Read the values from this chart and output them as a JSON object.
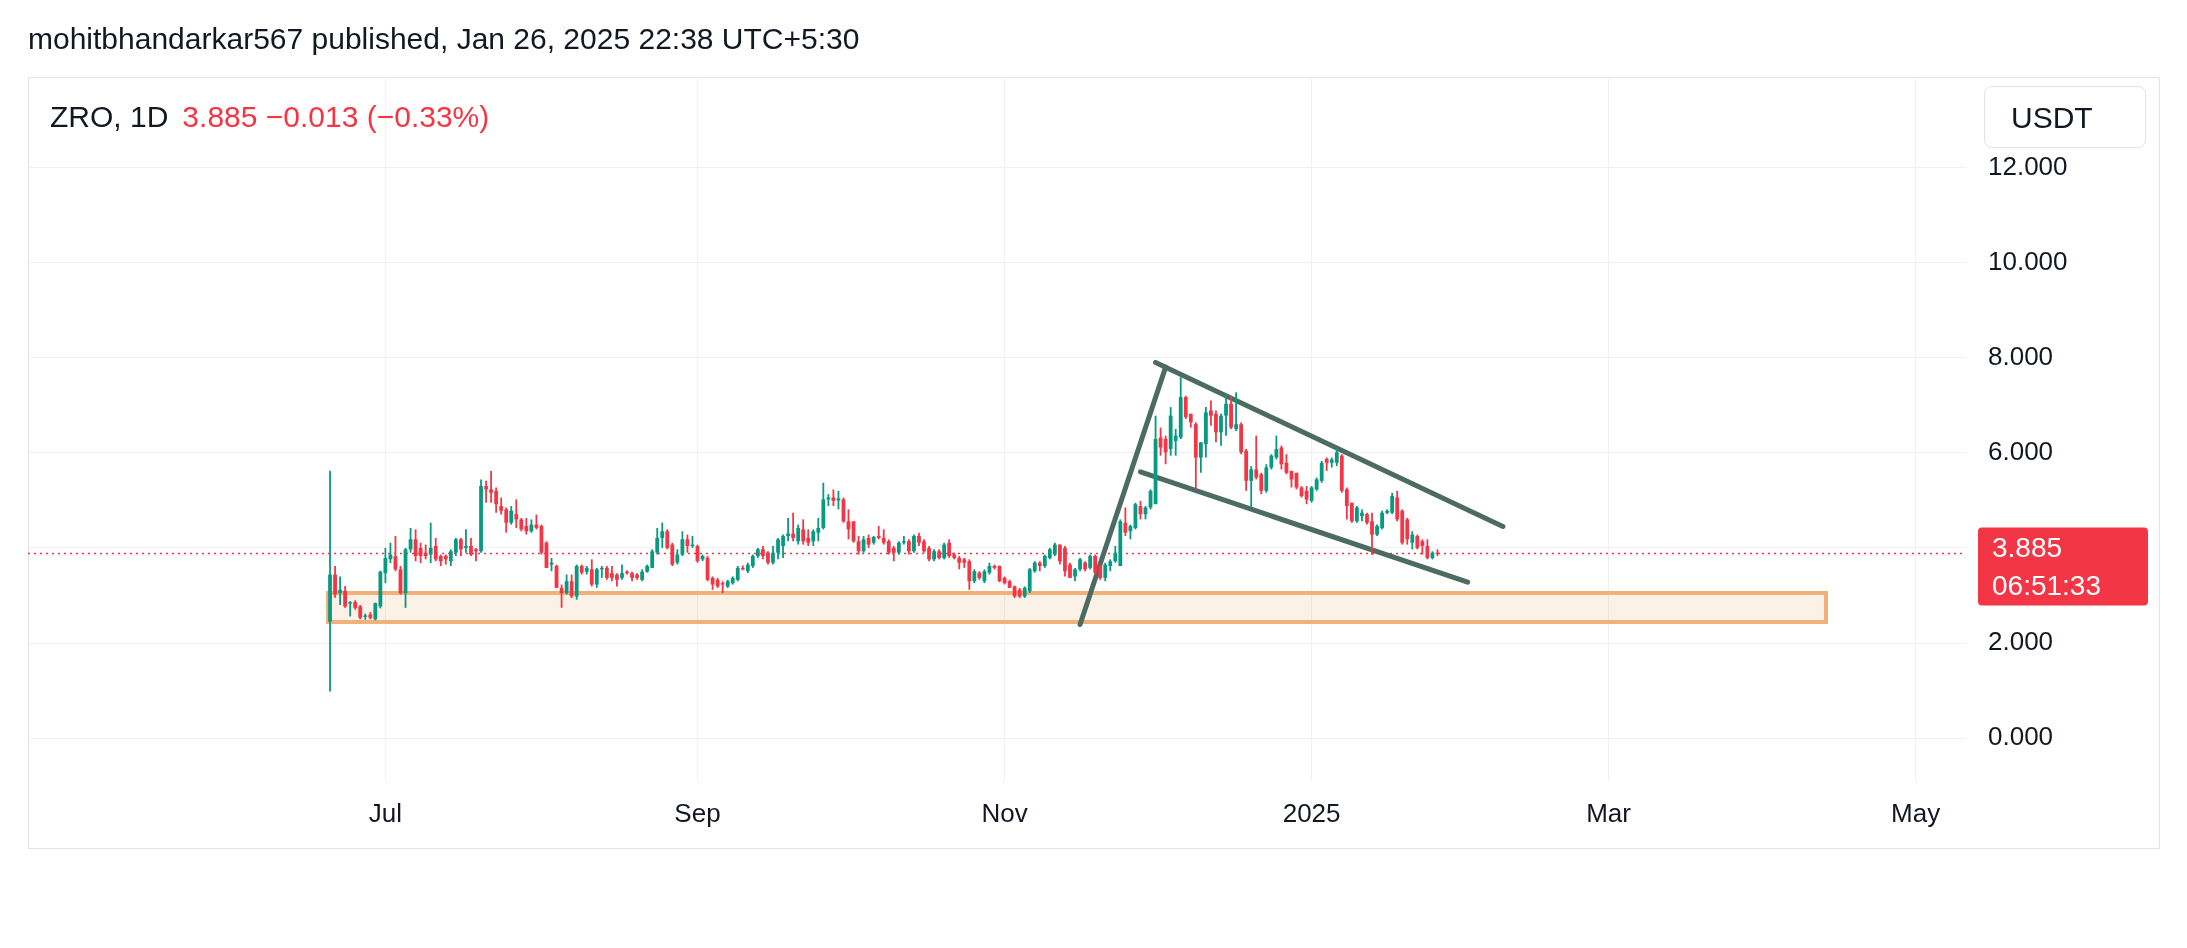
{
  "chart_data": {
    "type": "candlestick",
    "title": "ZRO, 1D",
    "subtitle": "3.885  −0.013 (−0.33%)",
    "ylabel": "USDT",
    "annotations": [
      "mohitbhandarkar567 published, Jan 26, 2025 22:38 UTC+5:30",
      "06:51:33"
    ],
    "xlim": [
      "2024-04-21",
      "2025-05-11"
    ],
    "xticks": [
      {
        "value": "2024-07-01",
        "label": "Jul"
      },
      {
        "value": "2024-09-01",
        "label": "Sep"
      },
      {
        "value": "2024-11-01",
        "label": "Nov"
      },
      {
        "value": "2025-01-01",
        "label": "2025"
      },
      {
        "value": "2025-03-01",
        "label": "Mar"
      },
      {
        "value": "2025-05-01",
        "label": "May"
      }
    ],
    "ylim": [
      -0.9,
      13.9
    ],
    "yticks": [
      {
        "value": 0,
        "label": "0.000"
      },
      {
        "value": 2,
        "label": "2.000"
      },
      {
        "value": 4,
        "label": null
      },
      {
        "value": 6,
        "label": "6.000"
      },
      {
        "value": 8,
        "label": "8.000"
      },
      {
        "value": 10,
        "label": "10.000"
      },
      {
        "value": 12,
        "label": "12.000"
      }
    ],
    "grid": true,
    "x": [
      "2024-06-20",
      "2024-06-21",
      "2024-06-22",
      "2024-06-23",
      "2024-06-24",
      "2024-06-25",
      "2024-06-26",
      "2024-06-27",
      "2024-06-28",
      "2024-06-29",
      "2024-06-30",
      "2024-07-01",
      "2024-07-02",
      "2024-07-03",
      "2024-07-04",
      "2024-07-05",
      "2024-07-06",
      "2024-07-07",
      "2024-07-08",
      "2024-07-09",
      "2024-07-10",
      "2024-07-11",
      "2024-07-12",
      "2024-07-13",
      "2024-07-14",
      "2024-07-15",
      "2024-07-16",
      "2024-07-17",
      "2024-07-18",
      "2024-07-19",
      "2024-07-20",
      "2024-07-21",
      "2024-07-22",
      "2024-07-23",
      "2024-07-24",
      "2024-07-25",
      "2024-07-26",
      "2024-07-27",
      "2024-07-28",
      "2024-07-29",
      "2024-07-30",
      "2024-07-31",
      "2024-08-01",
      "2024-08-02",
      "2024-08-03",
      "2024-08-04",
      "2024-08-05",
      "2024-08-06",
      "2024-08-07",
      "2024-08-08",
      "2024-08-09",
      "2024-08-10",
      "2024-08-11",
      "2024-08-12",
      "2024-08-13",
      "2024-08-14",
      "2024-08-15",
      "2024-08-16",
      "2024-08-17",
      "2024-08-18",
      "2024-08-19",
      "2024-08-20",
      "2024-08-21",
      "2024-08-22",
      "2024-08-23",
      "2024-08-24",
      "2024-08-25",
      "2024-08-26",
      "2024-08-27",
      "2024-08-28",
      "2024-08-29",
      "2024-08-30",
      "2024-08-31",
      "2024-09-01",
      "2024-09-02",
      "2024-09-03",
      "2024-09-04",
      "2024-09-05",
      "2024-09-06",
      "2024-09-07",
      "2024-09-08",
      "2024-09-09",
      "2024-09-10",
      "2024-09-11",
      "2024-09-12",
      "2024-09-13",
      "2024-09-14",
      "2024-09-15",
      "2024-09-16",
      "2024-09-17",
      "2024-09-18",
      "2024-09-19",
      "2024-09-20",
      "2024-09-21",
      "2024-09-22",
      "2024-09-23",
      "2024-09-24",
      "2024-09-25",
      "2024-09-26",
      "2024-09-27",
      "2024-09-28",
      "2024-09-29",
      "2024-09-30",
      "2024-10-01",
      "2024-10-02",
      "2024-10-03",
      "2024-10-04",
      "2024-10-05",
      "2024-10-06",
      "2024-10-07",
      "2024-10-08",
      "2024-10-09",
      "2024-10-10",
      "2024-10-11",
      "2024-10-12",
      "2024-10-13",
      "2024-10-14",
      "2024-10-15",
      "2024-10-16",
      "2024-10-17",
      "2024-10-18",
      "2024-10-19",
      "2024-10-20",
      "2024-10-21",
      "2024-10-22",
      "2024-10-23",
      "2024-10-24",
      "2024-10-25",
      "2024-10-26",
      "2024-10-27",
      "2024-10-28",
      "2024-10-29",
      "2024-10-30",
      "2024-10-31",
      "2024-11-01",
      "2024-11-02",
      "2024-11-03",
      "2024-11-04",
      "2024-11-05",
      "2024-11-06",
      "2024-11-07",
      "2024-11-08",
      "2024-11-09",
      "2024-11-10",
      "2024-11-11",
      "2024-11-12",
      "2024-11-13",
      "2024-11-14",
      "2024-11-15",
      "2024-11-16",
      "2024-11-17",
      "2024-11-18",
      "2024-11-19",
      "2024-11-20",
      "2024-11-21",
      "2024-11-22",
      "2024-11-23",
      "2024-11-24",
      "2024-11-25",
      "2024-11-26",
      "2024-11-27",
      "2024-11-28",
      "2024-11-29",
      "2024-11-30",
      "2024-12-01",
      "2024-12-02",
      "2024-12-03",
      "2024-12-04",
      "2024-12-05",
      "2024-12-06",
      "2024-12-07",
      "2024-12-08",
      "2024-12-09",
      "2024-12-10",
      "2024-12-11",
      "2024-12-12",
      "2024-12-13",
      "2024-12-14",
      "2024-12-15",
      "2024-12-16",
      "2024-12-17",
      "2024-12-18",
      "2024-12-19",
      "2024-12-20",
      "2024-12-21",
      "2024-12-22",
      "2024-12-23",
      "2024-12-24",
      "2024-12-25",
      "2024-12-26",
      "2024-12-27",
      "2024-12-28",
      "2024-12-29",
      "2024-12-30",
      "2024-12-31",
      "2025-01-01",
      "2025-01-02",
      "2025-01-03",
      "2025-01-04",
      "2025-01-05",
      "2025-01-06",
      "2025-01-07",
      "2025-01-08",
      "2025-01-09",
      "2025-01-10",
      "2025-01-11",
      "2025-01-12",
      "2025-01-13",
      "2025-01-14",
      "2025-01-15",
      "2025-01-16",
      "2025-01-17",
      "2025-01-18",
      "2025-01-19",
      "2025-01-20",
      "2025-01-21",
      "2025-01-22",
      "2025-01-23",
      "2025-01-24",
      "2025-01-25",
      "2025-01-26"
    ],
    "ohlc": [
      [
        2.45,
        5.62,
        0.98,
        3.44
      ],
      [
        3.44,
        3.62,
        2.95,
        3.02
      ],
      [
        3.05,
        3.4,
        2.8,
        3.12
      ],
      [
        3.1,
        3.2,
        2.74,
        2.77
      ],
      [
        2.83,
        2.88,
        2.56,
        2.86
      ],
      [
        2.86,
        2.9,
        2.7,
        2.74
      ],
      [
        2.77,
        2.8,
        2.5,
        2.53
      ],
      [
        2.55,
        2.62,
        2.49,
        2.58
      ],
      [
        2.6,
        2.65,
        2.5,
        2.53
      ],
      [
        2.5,
        2.85,
        2.48,
        2.84
      ],
      [
        2.77,
        3.52,
        2.73,
        3.5
      ],
      [
        3.47,
        4.0,
        3.26,
        3.79
      ],
      [
        3.76,
        4.11,
        3.68,
        3.86
      ],
      [
        3.83,
        4.25,
        3.51,
        3.55
      ],
      [
        3.55,
        3.62,
        3.02,
        3.05
      ],
      [
        3.05,
        4.0,
        2.74,
        3.97
      ],
      [
        3.97,
        4.42,
        3.9,
        4.18
      ],
      [
        4.18,
        4.39,
        3.72,
        3.83
      ],
      [
        4.0,
        4.11,
        3.68,
        3.83
      ],
      [
        3.9,
        4.07,
        3.76,
        3.83
      ],
      [
        3.86,
        4.53,
        3.68,
        4.0
      ],
      [
        4.04,
        4.21,
        3.72,
        3.76
      ],
      [
        3.83,
        3.86,
        3.62,
        3.72
      ],
      [
        3.83,
        3.86,
        3.65,
        3.76
      ],
      [
        3.72,
        3.97,
        3.62,
        3.93
      ],
      [
        3.9,
        4.21,
        3.83,
        4.18
      ],
      [
        4.18,
        4.21,
        3.83,
        3.97
      ],
      [
        4.0,
        4.39,
        3.9,
        4.04
      ],
      [
        4.04,
        4.21,
        3.83,
        3.86
      ],
      [
        3.97,
        4.0,
        3.72,
        3.93
      ],
      [
        3.93,
        5.44,
        3.9,
        5.3
      ],
      [
        5.3,
        5.41,
        4.95,
        5.23
      ],
      [
        5.23,
        5.62,
        4.95,
        5.16
      ],
      [
        5.2,
        5.27,
        4.74,
        4.92
      ],
      [
        4.88,
        5.06,
        4.7,
        4.78
      ],
      [
        4.81,
        4.85,
        4.32,
        4.53
      ],
      [
        4.53,
        4.88,
        4.49,
        4.78
      ],
      [
        4.71,
        5.02,
        4.42,
        4.6
      ],
      [
        4.6,
        4.63,
        4.35,
        4.39
      ],
      [
        4.46,
        4.63,
        4.28,
        4.35
      ],
      [
        4.35,
        4.6,
        4.32,
        4.49
      ],
      [
        4.49,
        4.7,
        4.39,
        4.42
      ],
      [
        4.46,
        4.49,
        3.86,
        3.9
      ],
      [
        4.11,
        4.14,
        3.58,
        3.58
      ],
      [
        3.65,
        3.79,
        3.51,
        3.69
      ],
      [
        3.62,
        3.65,
        3.16,
        3.16
      ],
      [
        3.16,
        3.23,
        2.74,
        3.05
      ],
      [
        3.05,
        3.44,
        3.02,
        3.3
      ],
      [
        3.3,
        3.44,
        2.95,
        2.98
      ],
      [
        2.98,
        3.65,
        2.91,
        3.62
      ],
      [
        3.62,
        3.65,
        3.44,
        3.48
      ],
      [
        3.5,
        3.62,
        3.44,
        3.58
      ],
      [
        3.55,
        3.76,
        3.19,
        3.23
      ],
      [
        3.23,
        3.58,
        3.16,
        3.55
      ],
      [
        3.55,
        3.62,
        3.37,
        3.58
      ],
      [
        3.58,
        3.62,
        3.33,
        3.37
      ],
      [
        3.47,
        3.62,
        3.3,
        3.37
      ],
      [
        3.44,
        3.47,
        3.19,
        3.33
      ],
      [
        3.37,
        3.65,
        3.33,
        3.47
      ],
      [
        3.5,
        3.53,
        3.44,
        3.47
      ],
      [
        3.47,
        3.5,
        3.3,
        3.37
      ],
      [
        3.44,
        3.47,
        3.33,
        3.37
      ],
      [
        3.33,
        3.55,
        3.3,
        3.5
      ],
      [
        3.5,
        3.65,
        3.48,
        3.62
      ],
      [
        3.58,
        3.97,
        3.58,
        3.93
      ],
      [
        3.9,
        4.42,
        3.86,
        4.21
      ],
      [
        4.21,
        4.53,
        4.0,
        4.35
      ],
      [
        4.35,
        4.39,
        3.97,
        4.0
      ],
      [
        4.07,
        4.11,
        3.62,
        3.65
      ],
      [
        3.69,
        3.97,
        3.65,
        3.86
      ],
      [
        3.86,
        4.35,
        3.83,
        4.18
      ],
      [
        4.18,
        4.28,
        3.9,
        4.04
      ],
      [
        4.04,
        4.25,
        4.0,
        4.07
      ],
      [
        4.04,
        4.07,
        3.69,
        3.72
      ],
      [
        3.76,
        3.86,
        3.72,
        3.83
      ],
      [
        3.79,
        3.83,
        3.3,
        3.33
      ],
      [
        3.37,
        3.4,
        3.12,
        3.23
      ],
      [
        3.33,
        3.37,
        3.16,
        3.19
      ],
      [
        3.26,
        3.3,
        3.05,
        3.23
      ],
      [
        3.19,
        3.33,
        3.16,
        3.3
      ],
      [
        3.26,
        3.4,
        3.23,
        3.37
      ],
      [
        3.33,
        3.62,
        3.3,
        3.58
      ],
      [
        3.58,
        3.63,
        3.53,
        3.55
      ],
      [
        3.51,
        3.69,
        3.47,
        3.65
      ],
      [
        3.62,
        3.86,
        3.58,
        3.83
      ],
      [
        3.83,
        4.0,
        3.79,
        3.97
      ],
      [
        3.97,
        4.04,
        3.76,
        3.83
      ],
      [
        3.9,
        3.93,
        3.65,
        3.69
      ],
      [
        3.69,
        4.04,
        3.65,
        3.9
      ],
      [
        3.9,
        4.21,
        3.76,
        4.18
      ],
      [
        4.04,
        4.28,
        3.79,
        4.25
      ],
      [
        4.25,
        4.63,
        4.14,
        4.3
      ],
      [
        4.3,
        4.74,
        4.14,
        4.21
      ],
      [
        4.14,
        4.49,
        4.07,
        4.42
      ],
      [
        4.39,
        4.6,
        4.07,
        4.14
      ],
      [
        4.21,
        4.39,
        4.04,
        4.11
      ],
      [
        4.14,
        4.39,
        4.04,
        4.35
      ],
      [
        4.32,
        4.63,
        4.14,
        4.42
      ],
      [
        4.42,
        5.37,
        4.39,
        5.02
      ],
      [
        5.02,
        5.13,
        4.88,
        5.06
      ],
      [
        5.06,
        5.23,
        4.88,
        4.99
      ],
      [
        5.0,
        5.2,
        4.81,
        5.04
      ],
      [
        5.02,
        5.06,
        4.53,
        4.56
      ],
      [
        4.56,
        4.81,
        4.18,
        4.39
      ],
      [
        4.56,
        4.56,
        4.11,
        4.14
      ],
      [
        4.14,
        4.25,
        3.86,
        3.93
      ],
      [
        3.93,
        4.25,
        3.9,
        4.18
      ],
      [
        4.21,
        4.28,
        4.0,
        4.07
      ],
      [
        4.11,
        4.25,
        4.07,
        4.23
      ],
      [
        4.25,
        4.46,
        4.18,
        4.21
      ],
      [
        4.21,
        4.39,
        4.07,
        4.11
      ],
      [
        4.14,
        4.18,
        3.86,
        3.9
      ],
      [
        4.0,
        4.04,
        3.72,
        3.9
      ],
      [
        3.9,
        4.14,
        3.86,
        4.11
      ],
      [
        4.11,
        4.25,
        4.07,
        4.14
      ],
      [
        4.14,
        4.18,
        3.86,
        3.93
      ],
      [
        3.93,
        4.28,
        3.9,
        4.25
      ],
      [
        4.25,
        4.32,
        4.04,
        4.11
      ],
      [
        4.14,
        4.18,
        3.9,
        3.93
      ],
      [
        4.0,
        4.04,
        3.72,
        3.76
      ],
      [
        3.76,
        3.97,
        3.72,
        3.93
      ],
      [
        3.93,
        3.97,
        3.76,
        3.79
      ],
      [
        3.79,
        4.11,
        3.76,
        4.07
      ],
      [
        4.11,
        4.18,
        3.79,
        3.83
      ],
      [
        3.86,
        3.9,
        3.76,
        3.79
      ],
      [
        3.79,
        3.83,
        3.55,
        3.69
      ],
      [
        3.76,
        3.79,
        3.58,
        3.69
      ],
      [
        3.72,
        3.76,
        3.12,
        3.3
      ],
      [
        3.3,
        3.55,
        3.26,
        3.51
      ],
      [
        3.48,
        3.51,
        3.33,
        3.37
      ],
      [
        3.3,
        3.55,
        3.26,
        3.51
      ],
      [
        3.48,
        3.69,
        3.44,
        3.62
      ],
      [
        3.62,
        3.65,
        3.55,
        3.58
      ],
      [
        3.62,
        3.63,
        3.28,
        3.3
      ],
      [
        3.37,
        3.4,
        3.23,
        3.26
      ],
      [
        3.3,
        3.33,
        3.16,
        3.16
      ],
      [
        3.19,
        3.21,
        2.95,
        2.98
      ],
      [
        3.12,
        3.16,
        2.95,
        2.98
      ],
      [
        2.98,
        3.19,
        2.95,
        3.16
      ],
      [
        3.09,
        3.58,
        3.05,
        3.55
      ],
      [
        3.51,
        3.72,
        3.48,
        3.69
      ],
      [
        3.69,
        3.72,
        3.51,
        3.62
      ],
      [
        3.62,
        3.86,
        3.58,
        3.83
      ],
      [
        3.79,
        4.0,
        3.76,
        3.97
      ],
      [
        3.86,
        4.11,
        3.83,
        4.07
      ],
      [
        4.07,
        4.07,
        3.65,
        3.72
      ],
      [
        4.0,
        4.04,
        3.4,
        3.51
      ],
      [
        3.65,
        3.69,
        3.37,
        3.37
      ],
      [
        3.4,
        3.58,
        3.3,
        3.55
      ],
      [
        3.55,
        3.79,
        3.51,
        3.76
      ],
      [
        3.69,
        3.72,
        3.51,
        3.55
      ],
      [
        3.58,
        3.86,
        3.55,
        3.83
      ],
      [
        3.83,
        3.86,
        3.44,
        3.48
      ],
      [
        3.62,
        3.65,
        3.33,
        3.37
      ],
      [
        3.37,
        3.69,
        3.3,
        3.65
      ],
      [
        3.62,
        3.76,
        3.51,
        3.72
      ],
      [
        3.72,
        4.04,
        3.69,
        3.9
      ],
      [
        3.62,
        4.6,
        3.62,
        4.56
      ],
      [
        4.53,
        4.85,
        4.25,
        4.32
      ],
      [
        4.35,
        4.49,
        4.18,
        4.46
      ],
      [
        4.42,
        4.95,
        4.39,
        4.92
      ],
      [
        4.88,
        4.99,
        4.6,
        4.71
      ],
      [
        4.71,
        4.88,
        4.6,
        4.85
      ],
      [
        4.85,
        5.23,
        4.81,
        5.2
      ],
      [
        4.92,
        6.78,
        4.92,
        6.29
      ],
      [
        6.32,
        6.53,
        5.94,
        6.11
      ],
      [
        6.29,
        6.36,
        5.76,
        6.01
      ],
      [
        6.08,
        6.96,
        5.94,
        6.78
      ],
      [
        6.25,
        6.5,
        5.94,
        6.36
      ],
      [
        6.32,
        7.59,
        6.29,
        7.17
      ],
      [
        7.17,
        7.2,
        6.71,
        6.75
      ],
      [
        6.82,
        6.82,
        6.53,
        6.64
      ],
      [
        6.6,
        6.64,
        5.23,
        5.9
      ],
      [
        5.9,
        6.22,
        5.58,
        6.22
      ],
      [
        6.18,
        6.96,
        5.9,
        6.85
      ],
      [
        6.89,
        7.1,
        6.57,
        6.78
      ],
      [
        6.82,
        6.89,
        6.22,
        6.43
      ],
      [
        6.43,
        6.82,
        6.15,
        6.78
      ],
      [
        6.78,
        7.24,
        6.36,
        7.03
      ],
      [
        7.03,
        7.2,
        6.5,
        6.53
      ],
      [
        6.5,
        7.27,
        6.46,
        6.6
      ],
      [
        6.6,
        6.64,
        5.97,
        6.01
      ],
      [
        6.04,
        6.08,
        5.2,
        5.41
      ],
      [
        5.41,
        5.72,
        4.85,
        5.65
      ],
      [
        5.65,
        6.36,
        5.44,
        5.48
      ],
      [
        5.55,
        5.58,
        5.13,
        5.2
      ],
      [
        5.2,
        5.76,
        5.16,
        5.69
      ],
      [
        5.69,
        5.97,
        5.65,
        5.94
      ],
      [
        5.9,
        6.36,
        5.86,
        6.08
      ],
      [
        6.11,
        6.15,
        5.65,
        5.76
      ],
      [
        5.79,
        5.97,
        5.55,
        5.58
      ],
      [
        5.62,
        5.62,
        5.27,
        5.44
      ],
      [
        5.58,
        5.58,
        5.23,
        5.27
      ],
      [
        5.27,
        5.3,
        5.06,
        5.09
      ],
      [
        5.2,
        5.3,
        4.92,
        5.02
      ],
      [
        4.99,
        5.3,
        4.95,
        5.27
      ],
      [
        5.23,
        5.48,
        5.2,
        5.44
      ],
      [
        5.41,
        5.83,
        5.37,
        5.79
      ],
      [
        5.87,
        5.9,
        5.62,
        5.79
      ],
      [
        5.79,
        5.9,
        5.69,
        5.86
      ],
      [
        5.79,
        6.11,
        5.72,
        6.01
      ],
      [
        5.94,
        5.97,
        5.16,
        5.2
      ],
      [
        5.23,
        5.27,
        4.6,
        4.88
      ],
      [
        4.95,
        4.95,
        4.53,
        4.56
      ],
      [
        4.56,
        4.88,
        4.53,
        4.85
      ],
      [
        4.67,
        4.81,
        4.56,
        4.74
      ],
      [
        4.71,
        4.74,
        4.49,
        4.53
      ],
      [
        4.56,
        4.74,
        3.85,
        4.28
      ],
      [
        4.28,
        4.49,
        4.25,
        4.46
      ],
      [
        4.42,
        4.78,
        4.39,
        4.74
      ],
      [
        4.74,
        4.81,
        4.71,
        4.78
      ],
      [
        4.74,
        5.16,
        4.71,
        5.09
      ],
      [
        5.06,
        5.2,
        4.56,
        4.6
      ],
      [
        4.78,
        4.81,
        4.07,
        4.11
      ],
      [
        4.6,
        4.63,
        4.07,
        4.18
      ],
      [
        4.11,
        4.35,
        3.97,
        4.28
      ],
      [
        4.25,
        4.28,
        3.97,
        4.0
      ],
      [
        4.14,
        4.18,
        3.86,
        4.04
      ],
      [
        4.04,
        4.18,
        3.76,
        3.79
      ],
      [
        3.79,
        3.93,
        3.76,
        3.9
      ],
      [
        3.9,
        3.97,
        3.83,
        3.885
      ]
    ],
    "colors": [
      "#089981",
      "#f23645",
      "#089981",
      "#f23645",
      "#089981",
      "#f23645",
      "#f23645",
      "#089981",
      "#f23645",
      "#089981",
      "#089981",
      "#089981",
      "#089981",
      "#f23645",
      "#f23645",
      "#089981",
      "#089981",
      "#f23645",
      "#f23645",
      "#f23645",
      "#089981",
      "#f23645",
      "#f23645",
      "#f23645",
      "#089981",
      "#089981",
      "#f23645",
      "#089981",
      "#f23645",
      "#f23645",
      "#089981",
      "#f23645",
      "#f23645",
      "#f23645",
      "#f23645",
      "#f23645",
      "#089981",
      "#f23645",
      "#f23645",
      "#f23645",
      "#089981",
      "#f23645",
      "#f23645",
      "#f23645",
      "#089981",
      "#f23645",
      "#f23645",
      "#089981",
      "#f23645",
      "#089981",
      "#f23645",
      "#089981",
      "#f23645",
      "#089981",
      "#089981",
      "#f23645",
      "#f23645",
      "#f23645",
      "#089981",
      "#f23645",
      "#f23645",
      "#f23645",
      "#089981",
      "#089981",
      "#089981",
      "#089981",
      "#089981",
      "#f23645",
      "#f23645",
      "#089981",
      "#089981",
      "#f23645",
      "#089981",
      "#f23645",
      "#089981",
      "#f23645",
      "#f23645",
      "#f23645",
      "#f23645",
      "#089981",
      "#089981",
      "#089981",
      "#f23645",
      "#089981",
      "#089981",
      "#089981",
      "#f23645",
      "#f23645",
      "#089981",
      "#089981",
      "#089981",
      "#089981",
      "#f23645",
      "#089981",
      "#f23645",
      "#f23645",
      "#089981",
      "#089981",
      "#089981",
      "#089981",
      "#f23645",
      "#089981",
      "#f23645",
      "#f23645",
      "#f23645",
      "#f23645",
      "#089981",
      "#f23645",
      "#089981",
      "#f23645",
      "#f23645",
      "#f23645",
      "#f23645",
      "#089981",
      "#089981",
      "#f23645",
      "#089981",
      "#f23645",
      "#f23645",
      "#f23645",
      "#089981",
      "#f23645",
      "#089981",
      "#f23645",
      "#f23645",
      "#f23645",
      "#f23645",
      "#f23645",
      "#089981",
      "#f23645",
      "#089981",
      "#089981",
      "#f23645",
      "#f23645",
      "#f23645",
      "#f23645",
      "#f23645",
      "#f23645",
      "#089981",
      "#089981",
      "#089981",
      "#f23645",
      "#089981",
      "#089981",
      "#089981",
      "#f23645",
      "#f23645",
      "#f23645",
      "#089981",
      "#089981",
      "#f23645",
      "#089981",
      "#f23645",
      "#f23645",
      "#089981",
      "#089981",
      "#089981",
      "#089981",
      "#f23645",
      "#089981",
      "#089981",
      "#f23645",
      "#089981",
      "#089981",
      "#089981",
      "#f23645",
      "#f23645",
      "#089981",
      "#089981",
      "#089981",
      "#f23645",
      "#f23645",
      "#f23645",
      "#089981",
      "#089981",
      "#f23645",
      "#f23645",
      "#089981",
      "#089981",
      "#f23645",
      "#089981",
      "#f23645",
      "#f23645",
      "#089981",
      "#f23645",
      "#f23645",
      "#089981",
      "#089981",
      "#089981",
      "#f23645",
      "#f23645",
      "#f23645",
      "#f23645",
      "#f23645",
      "#f23645",
      "#089981",
      "#089981",
      "#089981",
      "#f23645",
      "#089981",
      "#089981",
      "#f23645",
      "#f23645",
      "#f23645",
      "#089981",
      "#089981",
      "#f23645",
      "#f23645",
      "#089981",
      "#089981",
      "#089981",
      "#089981",
      "#f23645",
      "#f23645",
      "#f23645",
      "#089981",
      "#f23645",
      "#f23645",
      "#f23645",
      "#089981",
      "#f23645"
    ],
    "series": [
      {
        "type": "line",
        "color": "#4b6b63",
        "x": [
          "2024-11-16",
          "2024-12-03"
        ],
        "values": [
          2.39,
          7.8
        ]
      },
      {
        "type": "line",
        "color": "#4b6b63",
        "x": [
          "2024-12-01",
          "2025-02-08"
        ],
        "values": [
          7.9,
          4.45
        ]
      },
      {
        "type": "line",
        "color": "#4b6b63",
        "x": [
          "2024-11-28",
          "2025-02-01"
        ],
        "values": [
          5.6,
          3.28
        ]
      }
    ],
    "bands": [
      {
        "axis": "y",
        "from": 2.44,
        "to": 3.05,
        "color": "#f0b27a"
      }
    ],
    "ref_lines": [
      {
        "axis": "y",
        "value": 3.885,
        "label": "3.885",
        "color": "#f23645",
        "line_style": "dotted"
      }
    ]
  }
}
